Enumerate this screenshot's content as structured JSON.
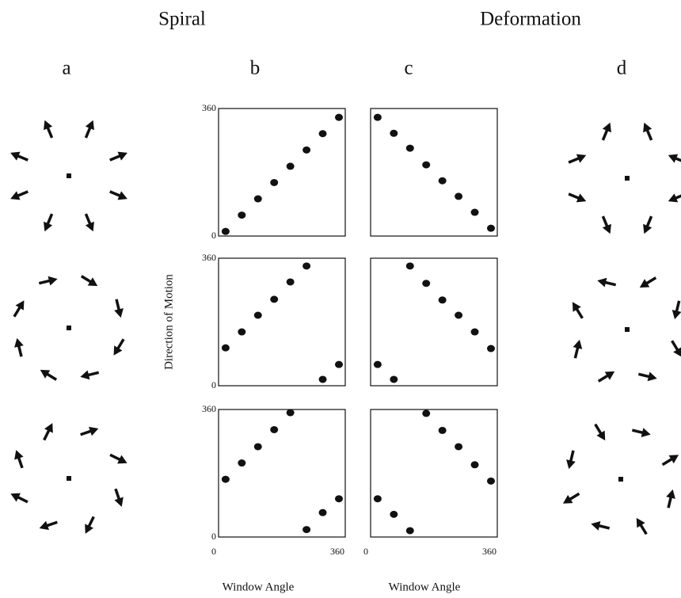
{
  "headings": [
    "Spiral",
    "Deformation"
  ],
  "panels": [
    "a",
    "b",
    "c",
    "d"
  ],
  "chart_data": [
    {
      "type": "scatter",
      "x": [
        20,
        66,
        112,
        158,
        204,
        250,
        296,
        342
      ],
      "y": [
        13,
        59,
        105,
        151,
        197,
        243,
        289,
        335
      ],
      "xlim": [
        0,
        360
      ],
      "ylim": [
        0,
        360
      ],
      "yticks": [
        0,
        360
      ]
    },
    {
      "type": "scatter",
      "x": [
        20,
        66,
        112,
        158,
        204,
        250,
        296,
        342
      ],
      "y": [
        335,
        290,
        248,
        201,
        156,
        112,
        67,
        22
      ],
      "xlim": [
        0,
        360
      ],
      "ylim": [
        0,
        360
      ]
    },
    {
      "type": "scatter",
      "x": [
        20,
        66,
        112,
        158,
        204,
        250,
        296,
        342
      ],
      "y": [
        107,
        152,
        199,
        244,
        293,
        338,
        18,
        60
      ],
      "xlim": [
        0,
        360
      ],
      "ylim": [
        0,
        360
      ],
      "yticks": [
        0,
        360
      ],
      "ylabel": "Direction of Motion"
    },
    {
      "type": "scatter",
      "x": [
        20,
        66,
        112,
        158,
        204,
        250,
        296,
        342
      ],
      "y": [
        60,
        18,
        338,
        289,
        242,
        199,
        152,
        105
      ],
      "xlim": [
        0,
        360
      ],
      "ylim": [
        0,
        360
      ]
    },
    {
      "type": "scatter",
      "x": [
        20,
        66,
        112,
        158,
        204,
        250,
        296,
        342
      ],
      "y": [
        163,
        209,
        255,
        303,
        351,
        21,
        69,
        108
      ],
      "xlim": [
        0,
        360
      ],
      "ylim": [
        0,
        360
      ],
      "yticks": [
        0,
        360
      ],
      "xticks": [
        0,
        360
      ],
      "xlabel": "Window Angle"
    },
    {
      "type": "scatter",
      "x": [
        20,
        66,
        112,
        158,
        204,
        250,
        296,
        342
      ],
      "y": [
        108,
        64,
        18,
        349,
        301,
        255,
        204,
        158
      ],
      "xlim": [
        0,
        360
      ],
      "ylim": [
        0,
        360
      ],
      "xticks": [
        0,
        360
      ],
      "xlabel": "Window Angle"
    }
  ]
}
